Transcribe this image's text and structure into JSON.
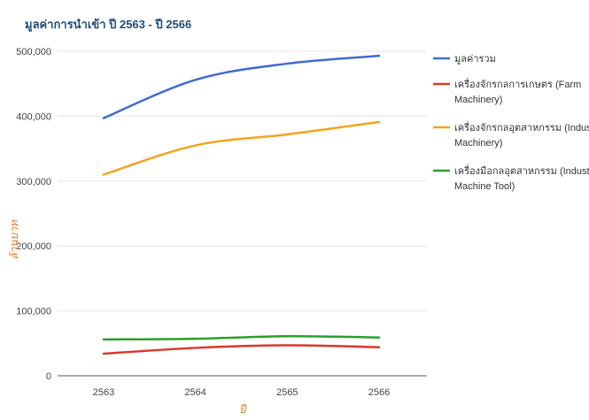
{
  "chart_data": {
    "type": "line",
    "title": "มูลค่าการนำเข้า ปี 2563 - ปี 2566",
    "xlabel": "ปี",
    "ylabel": "ล้านบาท",
    "categories": [
      "2563",
      "2564",
      "2565",
      "2566"
    ],
    "ylim": [
      0,
      500000
    ],
    "yticks": [
      0,
      100000,
      200000,
      300000,
      400000,
      500000
    ],
    "ytick_labels": [
      "0",
      "100,000",
      "200,000",
      "300,000",
      "400,000",
      "500,000"
    ],
    "grid": true,
    "legend_position": "right",
    "series": [
      {
        "name": "มูลค่ารวม",
        "color": "#3f6bd1",
        "values": [
          397000,
          456000,
          481000,
          493000
        ]
      },
      {
        "name": "เครื่องจักรกลการเกษตร (Farm Machinery)",
        "legend_lines": [
          "เครื่องจักรกลการเกษตร (Farm",
          "Machinery)"
        ],
        "color": "#d9382a",
        "values": [
          34000,
          43000,
          47000,
          44000
        ]
      },
      {
        "name": "เครื่องจักรกลอุตสาหกรรม (Industrial Machinery)",
        "legend_lines": [
          "เครื่องจักรกลอุตสาหกรรม (Industrial",
          "Machinery)"
        ],
        "color": "#f5a31a",
        "values": [
          310000,
          355000,
          372000,
          391000
        ]
      },
      {
        "name": "เครื่องมือกลอุตสาหกรรม (Industrial Machine Tool)",
        "legend_lines": [
          "เครื่องมือกลอุตสาหกรรม (Industrial",
          "Machine Tool)"
        ],
        "color": "#2aa02a",
        "values": [
          56000,
          57000,
          61000,
          59000
        ]
      }
    ]
  }
}
